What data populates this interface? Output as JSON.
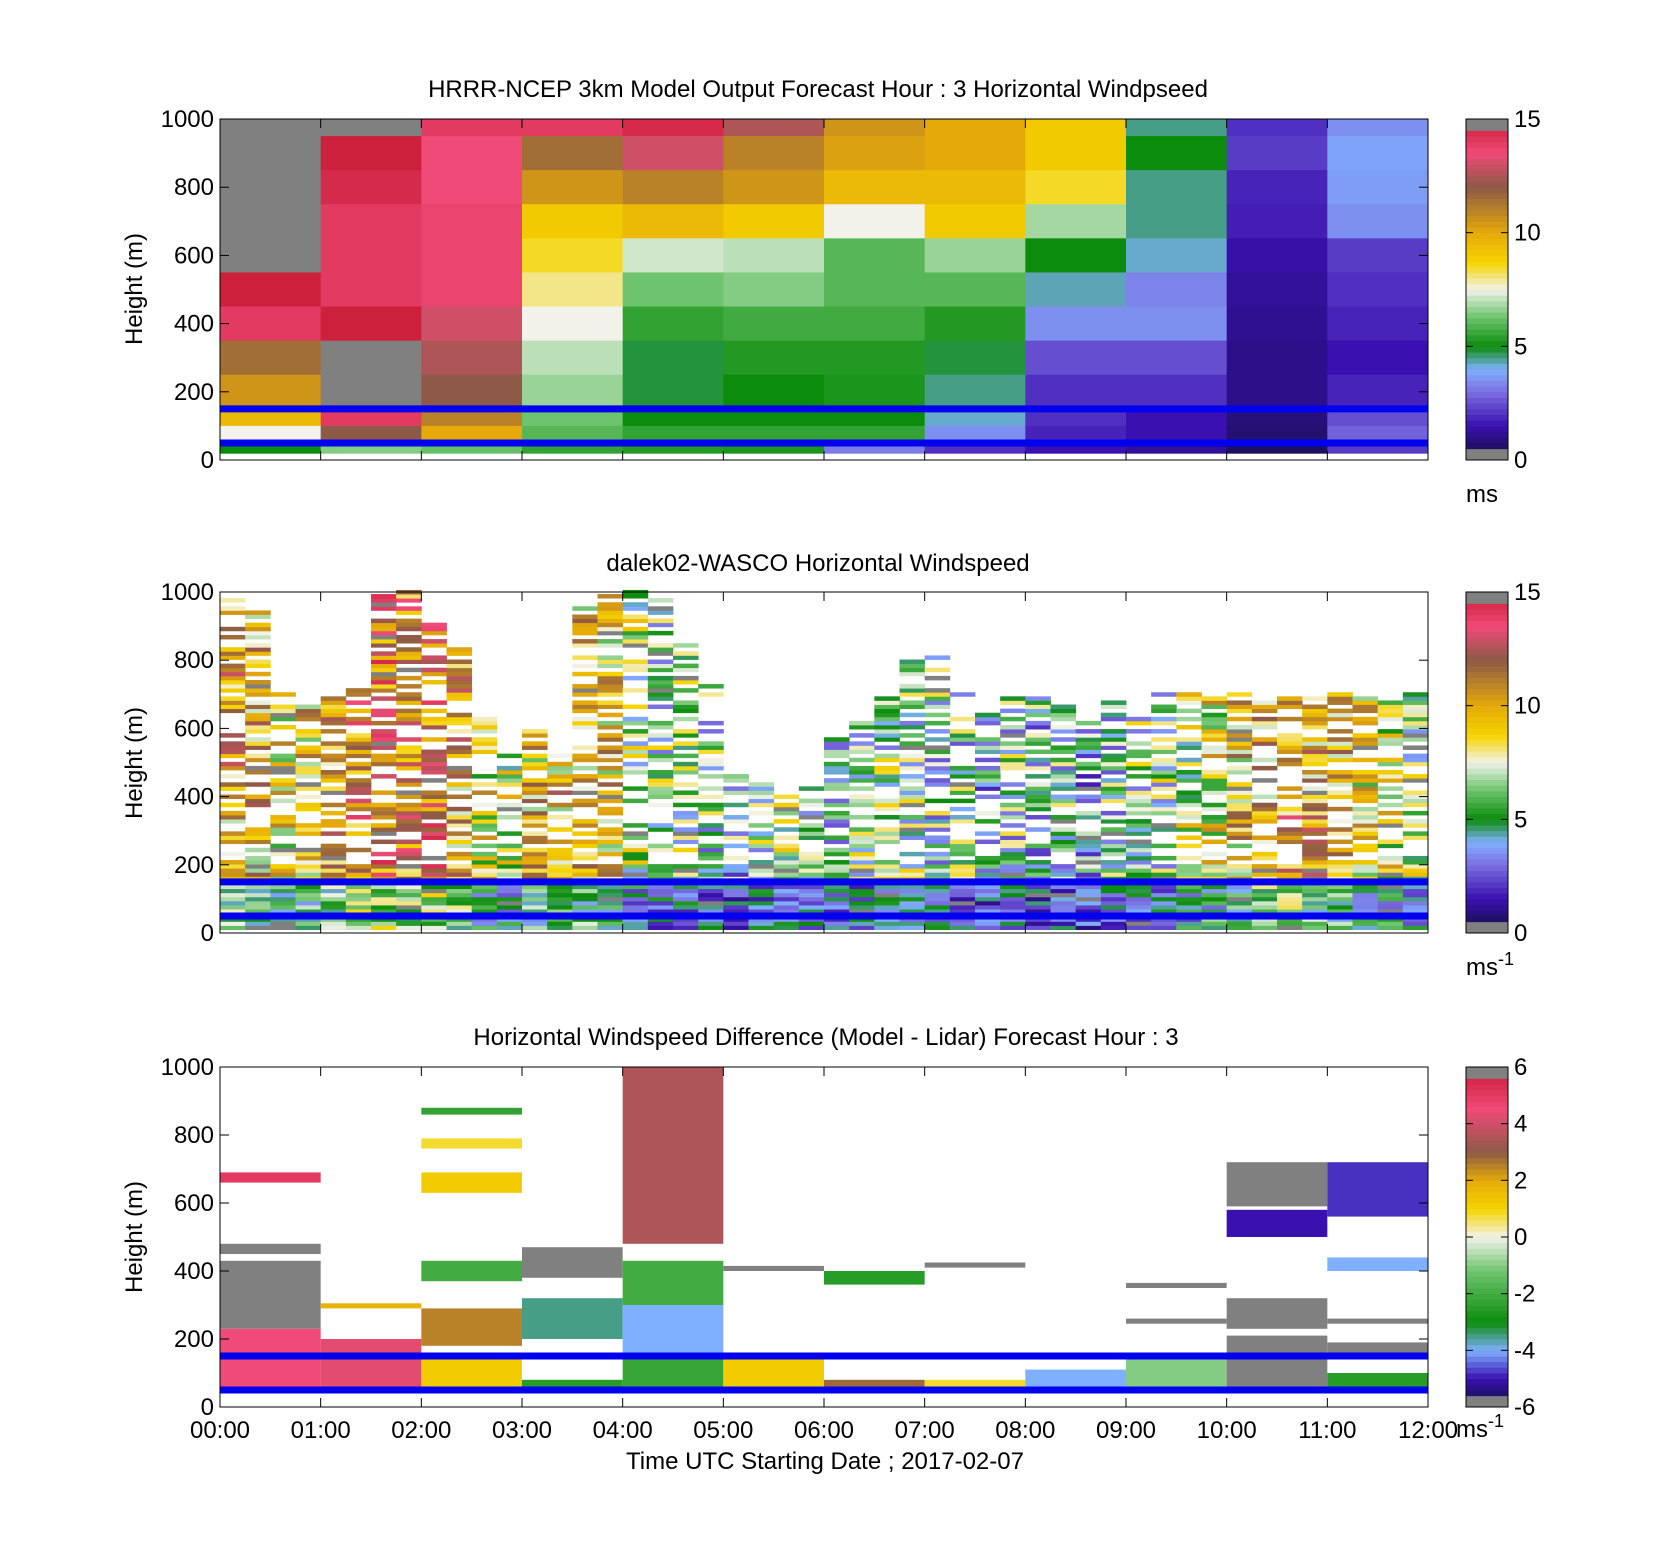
{
  "figure": {
    "xlabel": "Time UTC  Starting Date ; 2017-02-07",
    "x_ticks": [
      "00:00",
      "01:00",
      "02:00",
      "03:00",
      "04:00",
      "05:00",
      "06:00",
      "07:00",
      "08:00",
      "09:00",
      "10:00",
      "11:00",
      "12:00"
    ],
    "y_ticks": [
      "0",
      "200",
      "400",
      "600",
      "800",
      "1000"
    ],
    "ylabel": "Height (m)",
    "reference_line_heights_m": [
      50,
      150
    ],
    "reference_line_color": "#0000ee"
  },
  "chart_data": [
    {
      "type": "heatmap",
      "title": "HRRR-NCEP 3km Model Output   Forecast Hour : 3 Horizontal Windpseed",
      "xlabel": "",
      "ylabel": "Height (m)",
      "xlim": [
        0,
        12
      ],
      "ylim": [
        0,
        1000
      ],
      "colorbar": {
        "min": 0,
        "max": 15,
        "ticks": [
          "0",
          "5",
          "10",
          "15"
        ],
        "unit": "ms",
        "unit_sup": ""
      },
      "columns_hours": [
        0,
        1,
        2,
        3,
        4,
        5,
        6,
        7,
        8,
        9,
        10,
        11
      ],
      "rows": [
        {
          "y0": 950,
          "y1": 1000,
          "v": [
            16,
            16,
            14,
            14,
            14.5,
            12.5,
            10.5,
            10,
            9,
            4.5,
            2,
            3.5
          ]
        },
        {
          "y0": 850,
          "y1": 950,
          "v": [
            16,
            14.8,
            13.5,
            11.5,
            13,
            11,
            10.2,
            10,
            9,
            5,
            2.2,
            3.8
          ]
        },
        {
          "y0": 750,
          "y1": 850,
          "v": [
            16,
            14.5,
            13.5,
            10.5,
            11,
            10.5,
            9.5,
            9.5,
            8.5,
            4.5,
            1.8,
            3.7
          ]
        },
        {
          "y0": 650,
          "y1": 750,
          "v": [
            16,
            14,
            13.7,
            9,
            9.5,
            9,
            7.5,
            9,
            6.8,
            4.5,
            1.7,
            3.5
          ]
        },
        {
          "y0": 550,
          "y1": 650,
          "v": [
            16,
            14,
            13.7,
            8.5,
            7.2,
            7,
            6,
            6.7,
            5,
            4.2,
            1.4,
            2.2
          ]
        },
        {
          "y0": 450,
          "y1": 550,
          "v": [
            14.8,
            14,
            13.7,
            8,
            6.3,
            6.5,
            6,
            6,
            4.3,
            3.3,
            1.2,
            2
          ]
        },
        {
          "y0": 350,
          "y1": 450,
          "v": [
            14,
            14.8,
            13,
            7.5,
            5.5,
            5.7,
            5.7,
            5.3,
            3.5,
            3.5,
            1.1,
            1.8
          ]
        },
        {
          "y0": 250,
          "y1": 350,
          "v": [
            11.5,
            16,
            12.5,
            7,
            4.8,
            5.3,
            5.3,
            4.8,
            2.5,
            2.5,
            1,
            1.5
          ]
        },
        {
          "y0": 150,
          "y1": 250,
          "v": [
            10.5,
            16,
            12,
            6.7,
            4.8,
            5,
            5.2,
            4.5,
            2,
            2,
            1,
            1.8
          ]
        },
        {
          "y0": 100,
          "y1": 150,
          "v": [
            9.5,
            14,
            11,
            6.3,
            5,
            5,
            5,
            4.2,
            2,
            1.5,
            0.8,
            2.5
          ]
        },
        {
          "y0": 50,
          "y1": 100,
          "v": [
            7.5,
            12,
            10,
            6,
            5.5,
            5.5,
            5.5,
            3.5,
            1.8,
            1.5,
            0.7,
            2.8
          ]
        },
        {
          "y0": 20,
          "y1": 50,
          "v": [
            5,
            6.5,
            6.2,
            5.5,
            5.3,
            5.2,
            3.2,
            2,
            1.5,
            1.2,
            0.5,
            2.2
          ]
        }
      ]
    },
    {
      "type": "heatmap",
      "title": "dalek02-WASCO  Horizontal Windspeed",
      "xlabel": "",
      "ylabel": "Height (m)",
      "xlim": [
        0,
        12
      ],
      "ylim": [
        0,
        1000
      ],
      "colorbar": {
        "min": 0,
        "max": 15,
        "ticks": [
          "0",
          "5",
          "10",
          "15"
        ],
        "unit": "ms",
        "unit_sup": "-1"
      },
      "columns_hours": [
        0,
        0.25,
        0.5,
        0.75,
        1,
        1.25,
        1.5,
        1.75,
        2,
        2.25,
        2.5,
        2.75,
        3,
        3.25,
        3.5,
        3.75,
        4,
        4.25,
        4.5,
        4.75,
        5,
        5.25,
        5.5,
        5.75,
        6,
        6.25,
        6.5,
        6.75,
        7,
        7.25,
        7.5,
        7.75,
        8,
        8.25,
        8.5,
        8.75,
        9,
        9.25,
        9.5,
        9.75,
        10,
        10.25,
        10.5,
        10.75,
        11,
        11.25,
        11.5,
        11.75
      ],
      "column_top_m": [
        990,
        970,
        700,
        660,
        700,
        720,
        1000,
        1000,
        900,
        840,
        640,
        520,
        610,
        520,
        960,
        1000,
        1000,
        980,
        860,
        720,
        480,
        440,
        430,
        420,
        600,
        620,
        700,
        800,
        820,
        700,
        660,
        700,
        690,
        670,
        640,
        680,
        680,
        700,
        700,
        700,
        700,
        690,
        700,
        700,
        700,
        700,
        700,
        700
      ],
      "column_mean_mps": [
        10,
        9.5,
        8.5,
        9,
        10,
        11,
        11.5,
        11,
        11.5,
        10,
        8,
        7,
        9,
        9.5,
        9,
        9,
        6.5,
        6,
        6,
        5.5,
        5,
        6,
        6.5,
        5.5,
        5.5,
        6,
        6,
        6,
        5.5,
        5.5,
        4.5,
        5.5,
        5,
        5.5,
        4.5,
        5.5,
        6,
        6,
        7,
        8,
        9,
        10,
        10.5,
        10,
        9.5,
        8.5,
        7.5,
        6.5
      ]
    },
    {
      "type": "heatmap",
      "title": "Horizontal Windspeed Difference (Model - Lidar) Forecast Hour : 3",
      "xlabel": "Time UTC  Starting Date ; 2017-02-07",
      "ylabel": "Height (m)",
      "xlim": [
        0,
        12
      ],
      "ylim": [
        0,
        1000
      ],
      "colorbar": {
        "min": -6,
        "max": 6,
        "ticks": [
          "-6",
          "-4",
          "-2",
          "0",
          "2",
          "4",
          "6"
        ],
        "unit": "ms",
        "unit_sup": "-1"
      },
      "cells": [
        {
          "x0": 0,
          "x1": 1,
          "y0": 660,
          "y1": 690,
          "v": 5
        },
        {
          "x0": 0,
          "x1": 1,
          "y0": 450,
          "y1": 480,
          "v": 7
        },
        {
          "x0": 0,
          "x1": 1,
          "y0": 230,
          "y1": 430,
          "v": 7
        },
        {
          "x0": 0,
          "x1": 1,
          "y0": 40,
          "y1": 230,
          "v": 4.5
        },
        {
          "x0": 1,
          "x1": 2,
          "y0": 290,
          "y1": 305,
          "v": 1.8
        },
        {
          "x0": 1,
          "x1": 2,
          "y0": 40,
          "y1": 200,
          "v": 4.3
        },
        {
          "x0": 2,
          "x1": 3,
          "y0": 860,
          "y1": 880,
          "v": -2.3
        },
        {
          "x0": 2,
          "x1": 3,
          "y0": 760,
          "y1": 790,
          "v": 0.8
        },
        {
          "x0": 2,
          "x1": 3,
          "y0": 630,
          "y1": 690,
          "v": 1.2
        },
        {
          "x0": 2,
          "x1": 3,
          "y0": 370,
          "y1": 430,
          "v": -2
        },
        {
          "x0": 2,
          "x1": 3,
          "y0": 180,
          "y1": 290,
          "v": 2.5
        },
        {
          "x0": 2,
          "x1": 3,
          "y0": 40,
          "y1": 140,
          "v": 1.2
        },
        {
          "x0": 3,
          "x1": 4,
          "y0": 380,
          "y1": 470,
          "v": 7
        },
        {
          "x0": 3,
          "x1": 4,
          "y0": 200,
          "y1": 320,
          "v": -3.5
        },
        {
          "x0": 3,
          "x1": 4,
          "y0": 40,
          "y1": 80,
          "v": -2.5
        },
        {
          "x0": 4,
          "x1": 5,
          "y0": 480,
          "y1": 1000,
          "v": 3.5
        },
        {
          "x0": 4,
          "x1": 5,
          "y0": 300,
          "y1": 430,
          "v": -2
        },
        {
          "x0": 4,
          "x1": 5,
          "y0": 160,
          "y1": 300,
          "v": -4
        },
        {
          "x0": 4,
          "x1": 5,
          "y0": 40,
          "y1": 160,
          "v": -2.2
        },
        {
          "x0": 5,
          "x1": 6,
          "y0": 400,
          "y1": 415,
          "v": 7
        },
        {
          "x0": 5,
          "x1": 6,
          "y0": 40,
          "y1": 140,
          "v": 1.2
        },
        {
          "x0": 6,
          "x1": 7,
          "y0": 360,
          "y1": 400,
          "v": -2.5
        },
        {
          "x0": 6,
          "x1": 7,
          "y0": 40,
          "y1": 80,
          "v": 2.8
        },
        {
          "x0": 7,
          "x1": 8,
          "y0": 410,
          "y1": 425,
          "v": 7
        },
        {
          "x0": 7,
          "x1": 8,
          "y0": 40,
          "y1": 80,
          "v": 0.8
        },
        {
          "x0": 8,
          "x1": 9,
          "y0": 40,
          "y1": 110,
          "v": -4
        },
        {
          "x0": 9,
          "x1": 10,
          "y0": 350,
          "y1": 365,
          "v": 7
        },
        {
          "x0": 9,
          "x1": 10,
          "y0": 245,
          "y1": 260,
          "v": 7
        },
        {
          "x0": 9,
          "x1": 10,
          "y0": 40,
          "y1": 140,
          "v": -1
        },
        {
          "x0": 10,
          "x1": 11,
          "y0": 590,
          "y1": 720,
          "v": 7
        },
        {
          "x0": 10,
          "x1": 11,
          "y0": 500,
          "y1": 580,
          "v": -5
        },
        {
          "x0": 10,
          "x1": 11,
          "y0": 230,
          "y1": 320,
          "v": 7
        },
        {
          "x0": 10,
          "x1": 11,
          "y0": 40,
          "y1": 210,
          "v": 7
        },
        {
          "x0": 11,
          "x1": 12,
          "y0": 560,
          "y1": 720,
          "v": -4.8
        },
        {
          "x0": 11,
          "x1": 12,
          "y0": 400,
          "y1": 440,
          "v": -4
        },
        {
          "x0": 11,
          "x1": 12,
          "y0": 245,
          "y1": 260,
          "v": 7
        },
        {
          "x0": 11,
          "x1": 12,
          "y0": 150,
          "y1": 190,
          "v": 7
        },
        {
          "x0": 11,
          "x1": 12,
          "y0": 40,
          "y1": 100,
          "v": -2.5
        }
      ]
    }
  ]
}
